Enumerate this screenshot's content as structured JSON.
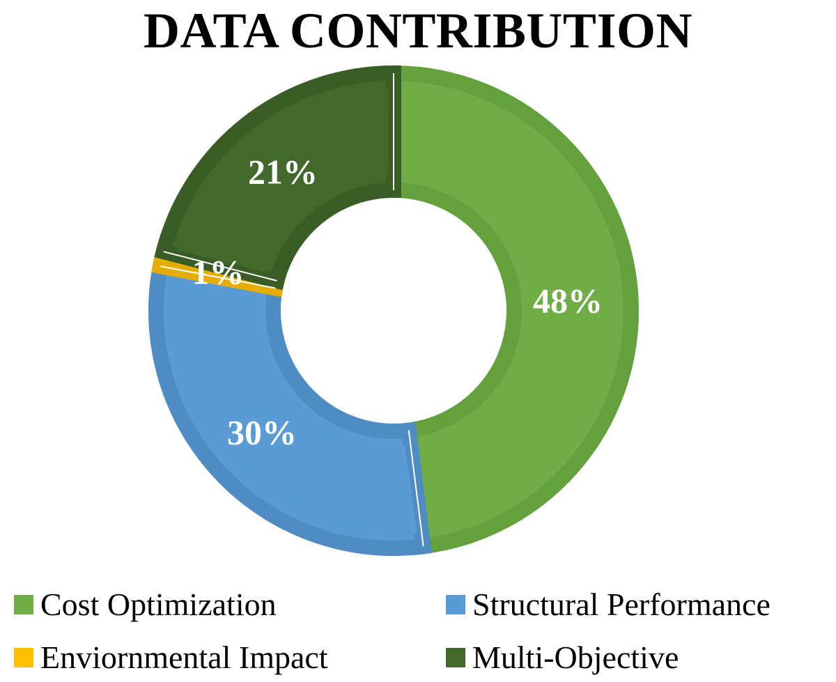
{
  "chart_data": {
    "type": "pie",
    "variant": "donut",
    "title": "DATA CONTRIBUTION",
    "slices": [
      {
        "label": "Cost Optimization",
        "value": 48,
        "display": "48%",
        "color": "#70AD47",
        "edge": "#64A03C"
      },
      {
        "label": "Structural Performance",
        "value": 30,
        "display": "30%",
        "color": "#5B9BD5",
        "edge": "#4F8CC4"
      },
      {
        "label": "Enviornmental Impact",
        "value": 1,
        "display": "1%",
        "color": "#FFC000",
        "edge": "#E6AC00"
      },
      {
        "label": "Multi-Objective",
        "value": 21,
        "display": "21%",
        "color": "#43682B",
        "edge": "#3A5C25"
      }
    ],
    "start_angle_deg": 0,
    "direction": "clockwise",
    "legend_position": "bottom"
  }
}
